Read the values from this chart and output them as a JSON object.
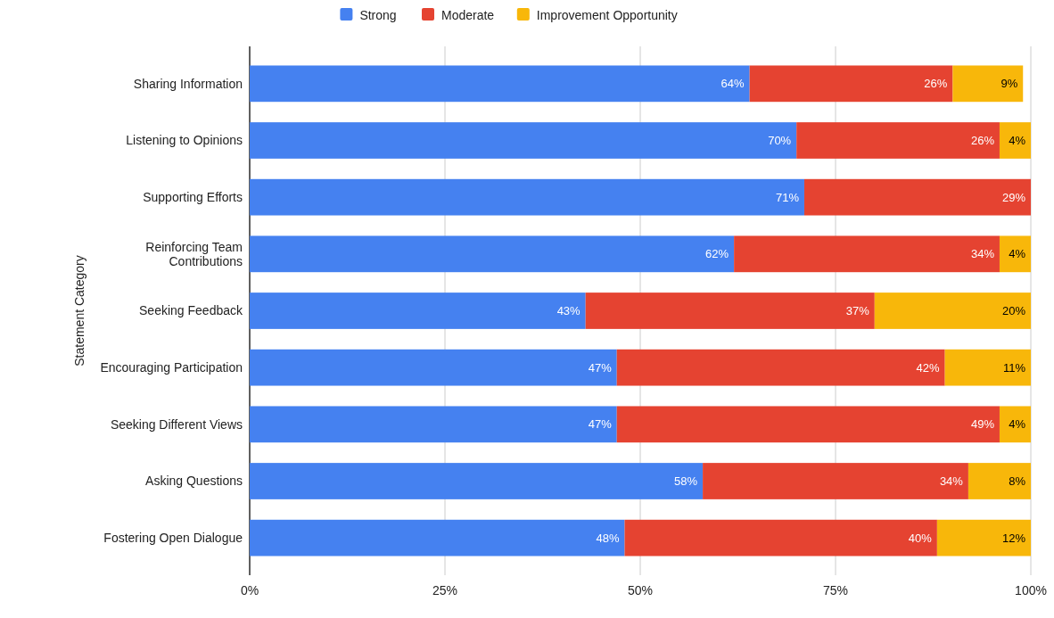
{
  "chart_data": {
    "type": "bar",
    "orientation": "horizontal",
    "stacked": true,
    "ylabel": "Statement Category",
    "categories": [
      "Sharing Information",
      "Listening to Opinions",
      "Supporting Efforts",
      "Reinforcing Team Contributions",
      "Seeking Feedback",
      "Encouraging Participation",
      "Seeking Different Views",
      "Asking Questions",
      "Fostering Open Dialogue"
    ],
    "series": [
      {
        "name": "Strong",
        "color": "#4581f0",
        "values": [
          64,
          70,
          71,
          62,
          43,
          47,
          47,
          58,
          48
        ],
        "value_labels": [
          "64%",
          "70%",
          "71%",
          "62%",
          "43%",
          "47%",
          "47%",
          "58%",
          "48%"
        ]
      },
      {
        "name": "Moderate",
        "color": "#e54331",
        "values": [
          26,
          26,
          29,
          34,
          37,
          42,
          49,
          34,
          40
        ],
        "value_labels": [
          "26%",
          "26%",
          "29%",
          "34%",
          "37%",
          "42%",
          "49%",
          "34%",
          "40%"
        ]
      },
      {
        "name": "Improvement Opportunity",
        "color": "#f8b70a",
        "values": [
          9,
          4,
          null,
          4,
          20,
          11,
          4,
          8,
          12
        ],
        "value_labels": [
          "9%",
          "4%",
          null,
          "4%",
          "20%",
          "11%",
          "4%",
          "8%",
          "12%"
        ]
      }
    ],
    "xlim": [
      0,
      100
    ],
    "xticks": [
      {
        "value": 0,
        "label": "0%"
      },
      {
        "value": 25,
        "label": "25%"
      },
      {
        "value": 50,
        "label": "50%"
      },
      {
        "value": 75,
        "label": "75%"
      },
      {
        "value": 100,
        "label": "100%"
      }
    ],
    "grid": "x",
    "legend": "top"
  }
}
